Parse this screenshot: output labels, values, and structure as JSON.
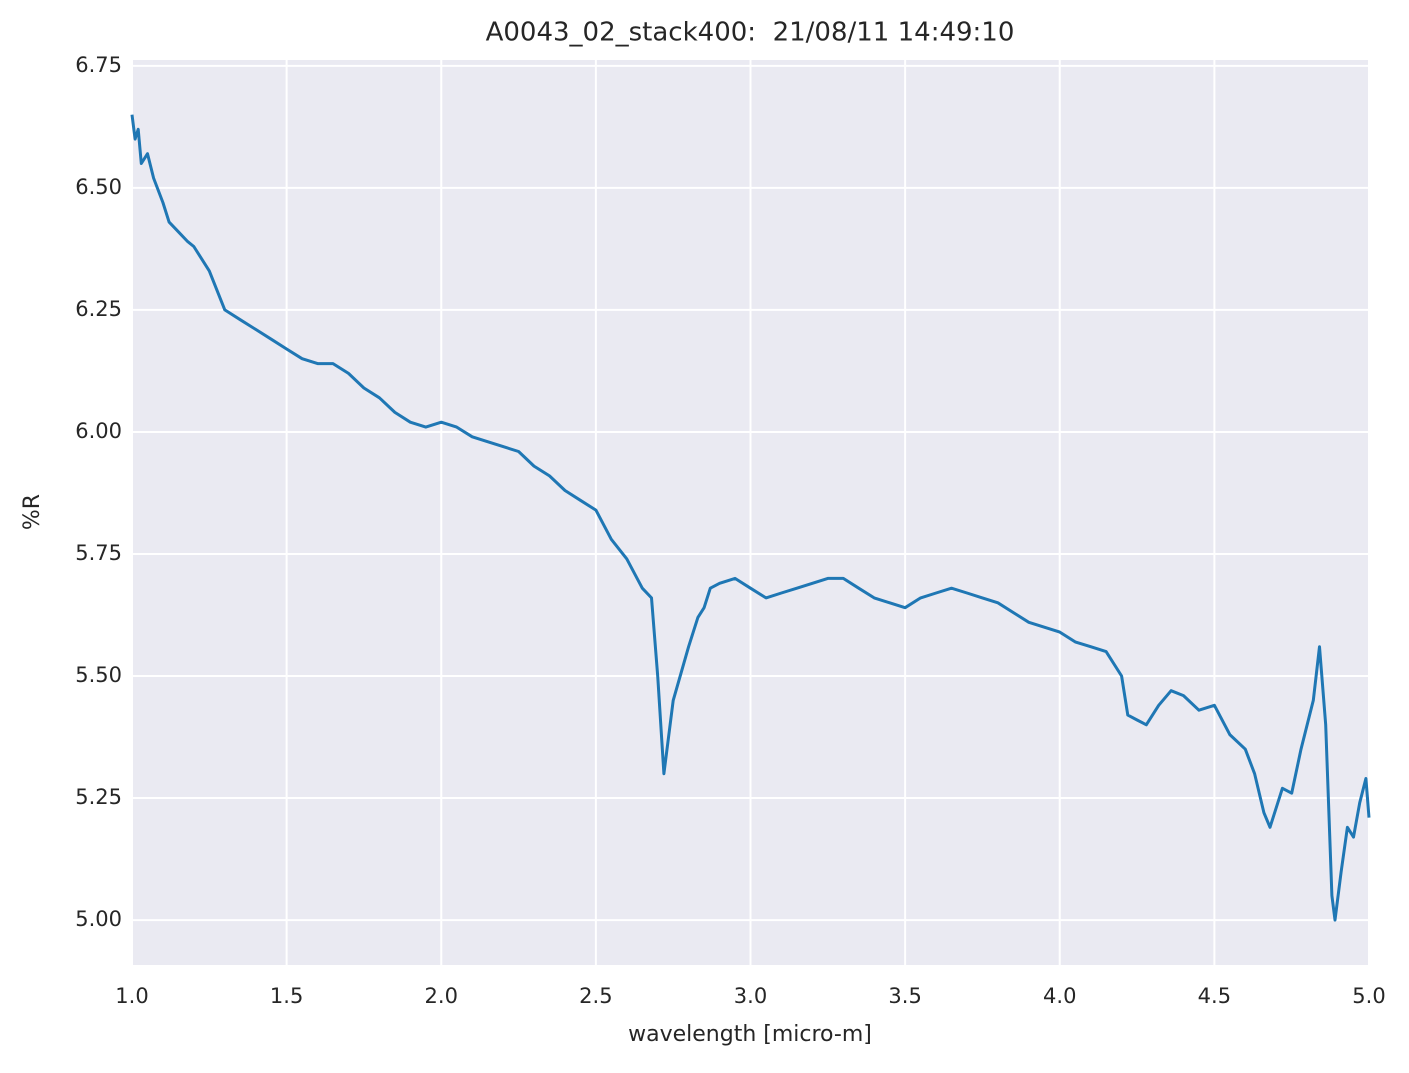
{
  "chart_data": {
    "type": "line",
    "title": "A0043_02_stack400:  21/08/11 14:49:10",
    "x_label": "wavelength [micro-m]",
    "y_label": "%R",
    "xlim": [
      1.0,
      5.0
    ],
    "ylim": [
      4.908,
      6.762
    ],
    "xticks": [
      {
        "value": 1.0,
        "label": "1.0"
      },
      1.5,
      {
        "value": 2.0,
        "label": "2.0"
      },
      2.5,
      {
        "value": 3.0,
        "label": "3.0"
      },
      3.5,
      {
        "value": 4.0,
        "label": "4.0"
      },
      4.5,
      {
        "value": 5.0,
        "label": "5.0"
      }
    ],
    "yticks": [
      {
        "value": 5.0,
        "label": "5.00"
      },
      5.25,
      {
        "value": 5.5,
        "label": "5.50"
      },
      5.75,
      {
        "value": 6.0,
        "label": "6.00"
      },
      6.25,
      {
        "value": 6.5,
        "label": "6.50"
      },
      6.75
    ],
    "grid": true,
    "x": [
      1.0,
      1.01,
      1.02,
      1.03,
      1.05,
      1.07,
      1.1,
      1.12,
      1.15,
      1.18,
      1.2,
      1.25,
      1.3,
      1.35,
      1.4,
      1.45,
      1.5,
      1.55,
      1.6,
      1.65,
      1.7,
      1.75,
      1.8,
      1.85,
      1.9,
      1.95,
      2.0,
      2.05,
      2.1,
      2.15,
      2.2,
      2.25,
      2.3,
      2.35,
      2.4,
      2.45,
      2.5,
      2.55,
      2.6,
      2.65,
      2.68,
      2.7,
      2.72,
      2.75,
      2.8,
      2.83,
      2.85,
      2.87,
      2.9,
      2.95,
      3.0,
      3.05,
      3.1,
      3.15,
      3.2,
      3.25,
      3.3,
      3.35,
      3.4,
      3.45,
      3.5,
      3.55,
      3.6,
      3.65,
      3.7,
      3.75,
      3.8,
      3.85,
      3.9,
      3.95,
      4.0,
      4.05,
      4.1,
      4.15,
      4.2,
      4.22,
      4.25,
      4.28,
      4.32,
      4.36,
      4.4,
      4.45,
      4.5,
      4.55,
      4.6,
      4.63,
      4.66,
      4.68,
      4.72,
      4.75,
      4.78,
      4.82,
      4.84,
      4.86,
      4.88,
      4.89,
      4.91,
      4.93,
      4.95,
      4.97,
      4.99,
      5.0
    ],
    "series": [
      {
        "color": "#1f77b4",
        "values": [
          6.65,
          6.6,
          6.62,
          6.55,
          6.57,
          6.52,
          6.47,
          6.43,
          6.41,
          6.39,
          6.38,
          6.33,
          6.25,
          6.23,
          6.21,
          6.19,
          6.17,
          6.15,
          6.14,
          6.14,
          6.12,
          6.09,
          6.07,
          6.04,
          6.02,
          6.01,
          6.02,
          6.01,
          5.99,
          5.98,
          5.97,
          5.96,
          5.93,
          5.91,
          5.88,
          5.86,
          5.84,
          5.78,
          5.74,
          5.68,
          5.66,
          5.5,
          5.3,
          5.45,
          5.56,
          5.62,
          5.64,
          5.68,
          5.69,
          5.7,
          5.68,
          5.66,
          5.67,
          5.68,
          5.69,
          5.7,
          5.7,
          5.68,
          5.66,
          5.65,
          5.64,
          5.66,
          5.67,
          5.68,
          5.67,
          5.66,
          5.65,
          5.63,
          5.61,
          5.6,
          5.59,
          5.57,
          5.56,
          5.55,
          5.5,
          5.42,
          5.41,
          5.4,
          5.44,
          5.47,
          5.46,
          5.43,
          5.44,
          5.38,
          5.35,
          5.3,
          5.22,
          5.19,
          5.27,
          5.26,
          5.35,
          5.45,
          5.56,
          5.4,
          5.05,
          5.0,
          5.1,
          5.19,
          5.17,
          5.24,
          5.29,
          5.21
        ]
      }
    ]
  }
}
